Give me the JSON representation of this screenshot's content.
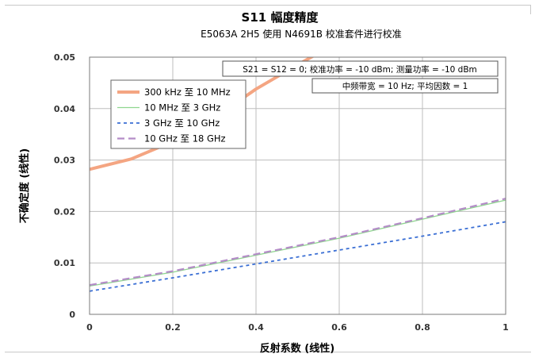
{
  "chart_data": {
    "type": "line",
    "title": "S11 幅度精度",
    "subtitle": "E5063A 2H5 使用 N4691B 校准套件进行校准",
    "xlabel": "反射系数 (线性)",
    "ylabel": "不确定度 (线性)",
    "xlim": [
      0,
      1
    ],
    "ylim": [
      0,
      0.05
    ],
    "xticks": [
      "0",
      "0.2",
      "0.4",
      "0.6",
      "0.8",
      "1"
    ],
    "yticks": [
      "0",
      "0.01",
      "0.02",
      "0.03",
      "0.04",
      "0.05"
    ],
    "grid": true,
    "legend_position": "top-left",
    "annotations": [
      "S21 = S12 = 0; 校准功率 = -10 dBm; 测量功率 = -10 dBm",
      "中频带宽 = 10 Hz; 平均因数 = 1"
    ],
    "series": [
      {
        "name": "300 kHz 至 10 MHz",
        "color": "#f4a582",
        "style": "solid-thick",
        "x": [
          0,
          0.1,
          0.2,
          0.3,
          0.4,
          0.5,
          0.55
        ],
        "y": [
          0.0282,
          0.0302,
          0.0336,
          0.0382,
          0.0438,
          0.0485,
          0.0508
        ]
      },
      {
        "name": "10 MHz 至 3 GHz",
        "color": "#8fd68f",
        "style": "solid-thin",
        "x": [
          0,
          0.2,
          0.4,
          0.6,
          0.8,
          1.0
        ],
        "y": [
          0.0055,
          0.0082,
          0.0115,
          0.0148,
          0.0185,
          0.0222
        ]
      },
      {
        "name": "3 GHz 至 10 GHz",
        "color": "#3b6fd4",
        "style": "dashed",
        "x": [
          0,
          0.2,
          0.4,
          0.6,
          0.8,
          1.0
        ],
        "y": [
          0.0045,
          0.0071,
          0.0098,
          0.0125,
          0.0152,
          0.018
        ]
      },
      {
        "name": "10 GHz 至 18 GHz",
        "color": "#b48cc8",
        "style": "dashed-long",
        "x": [
          0,
          0.2,
          0.4,
          0.6,
          0.8,
          1.0
        ],
        "y": [
          0.0057,
          0.0084,
          0.0117,
          0.015,
          0.0187,
          0.0225
        ]
      }
    ]
  }
}
